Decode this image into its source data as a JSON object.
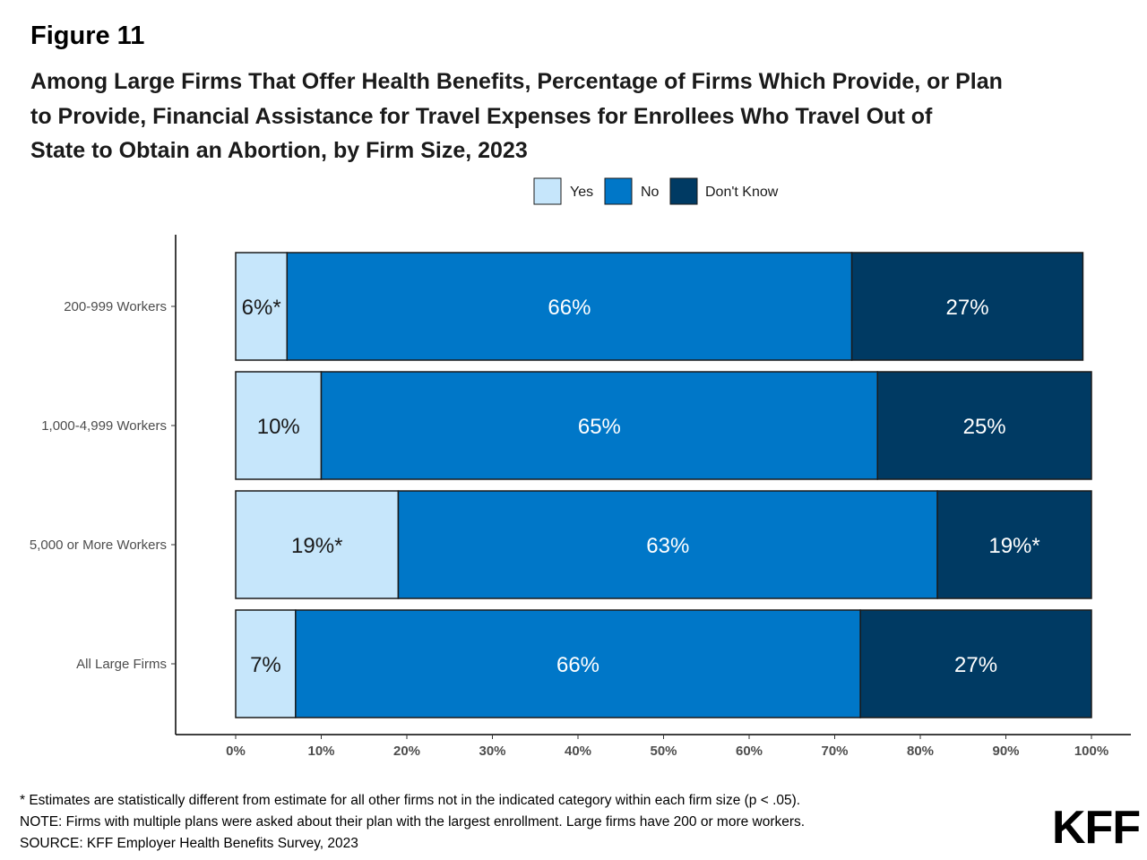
{
  "figure_label": "Figure 11",
  "title_lines": [
    "Among Large Firms That Offer Health Benefits, Percentage of Firms Which Provide, or Plan",
    "to Provide, Financial Assistance for Travel Expenses for Enrollees Who Travel Out of",
    "State to Obtain an Abortion, by Firm Size, 2023"
  ],
  "footnotes": [
    "* Estimates are statistically different from estimate for all other firms not in the indicated category within each firm size (p < .05).",
    "NOTE: Firms with multiple plans were asked about their plan with the largest enrollment.  Large firms have 200 or more workers.",
    "SOURCE: KFF Employer Health Benefits Survey, 2023"
  ],
  "logo_text": "KFF",
  "chart_data": {
    "type": "bar",
    "orientation": "horizontal",
    "stacked": true,
    "categories": [
      "200-999 Workers",
      "1,000-4,999 Workers",
      "5,000 or More Workers",
      "All Large Firms"
    ],
    "series": [
      {
        "name": "Yes",
        "color": "#c6e6fb",
        "label_color": "#1a1a1a",
        "values": [
          6,
          10,
          19,
          7
        ],
        "labels": [
          "6%*",
          "10%",
          "19%*",
          "7%"
        ]
      },
      {
        "name": "No",
        "color": "#0077c8",
        "label_color": "#ffffff",
        "values": [
          66,
          65,
          63,
          66
        ],
        "labels": [
          "66%",
          "65%",
          "63%",
          "66%"
        ]
      },
      {
        "name": "Don't Know",
        "color": "#003a63",
        "label_color": "#ffffff",
        "values": [
          27,
          25,
          19,
          27
        ],
        "labels": [
          "27%",
          "25%",
          "19%*",
          "27%"
        ]
      }
    ],
    "xlim": [
      0,
      100
    ],
    "x_ticks": [
      "0%",
      "10%",
      "20%",
      "30%",
      "40%",
      "50%",
      "60%",
      "70%",
      "80%",
      "90%",
      "100%"
    ],
    "legend_position": "top",
    "grid": false
  }
}
